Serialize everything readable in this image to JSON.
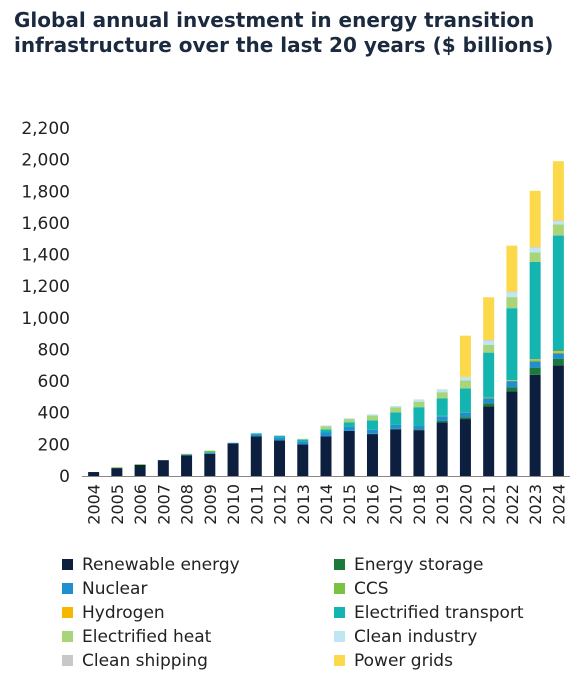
{
  "chart_data": {
    "type": "bar",
    "stacked": true,
    "title": "Global annual investment in energy transition infrastructure over the last 20 years ($ billions)",
    "xlabel": "",
    "ylabel": "",
    "ylim": [
      0,
      2200
    ],
    "yticks": [
      0,
      200,
      400,
      600,
      800,
      1000,
      1200,
      1400,
      1600,
      1800,
      2000,
      2200
    ],
    "ytick_labels": [
      "0",
      "200",
      "400",
      "600",
      "800",
      "1,000",
      "1,200",
      "1,400",
      "1,600",
      "1,800",
      "2,000",
      "2,200"
    ],
    "grid": false,
    "legend_position": "bottom",
    "categories": [
      "2004",
      "2005",
      "2006",
      "2007",
      "2008",
      "2009",
      "2010",
      "2011",
      "2012",
      "2013",
      "2014",
      "2015",
      "2016",
      "2017",
      "2018",
      "2019",
      "2020",
      "2021",
      "2022",
      "2023",
      "2024"
    ],
    "series": [
      {
        "name": "Renewable energy",
        "color": "#0c1f3f",
        "values": [
          25,
          50,
          70,
          100,
          130,
          140,
          205,
          250,
          225,
          200,
          250,
          285,
          265,
          295,
          290,
          340,
          360,
          440,
          535,
          640,
          700
        ]
      },
      {
        "name": "Energy storage",
        "color": "#1a7a3a",
        "values": [
          0,
          0,
          0,
          0,
          0,
          0,
          0,
          0,
          0,
          0,
          0,
          0,
          2,
          3,
          5,
          8,
          12,
          20,
          25,
          45,
          40
        ]
      },
      {
        "name": "Nuclear",
        "color": "#1f8fd0",
        "values": [
          0,
          0,
          0,
          0,
          5,
          10,
          5,
          15,
          20,
          20,
          25,
          25,
          25,
          25,
          25,
          30,
          30,
          30,
          40,
          40,
          35
        ]
      },
      {
        "name": "CCS",
        "color": "#7cc242",
        "values": [
          0,
          5,
          5,
          0,
          5,
          10,
          0,
          0,
          0,
          0,
          0,
          0,
          0,
          0,
          0,
          2,
          2,
          3,
          3,
          5,
          5
        ]
      },
      {
        "name": "Hydrogen",
        "color": "#f5b800",
        "values": [
          0,
          0,
          0,
          0,
          0,
          0,
          0,
          0,
          0,
          0,
          0,
          0,
          0,
          0,
          0,
          0,
          0,
          2,
          3,
          8,
          10
        ]
      },
      {
        "name": "Electrified transport",
        "color": "#14b5b0",
        "values": [
          0,
          0,
          0,
          0,
          0,
          0,
          0,
          5,
          10,
          10,
          20,
          30,
          60,
          80,
          115,
          110,
          150,
          285,
          455,
          615,
          730
        ]
      },
      {
        "name": "Electrified heat",
        "color": "#a8d47a",
        "values": [
          0,
          0,
          0,
          0,
          0,
          0,
          0,
          0,
          0,
          5,
          20,
          20,
          30,
          30,
          35,
          40,
          50,
          50,
          70,
          60,
          70
        ]
      },
      {
        "name": "Clean industry",
        "color": "#bfe6f5",
        "values": [
          0,
          0,
          0,
          0,
          0,
          0,
          0,
          0,
          0,
          0,
          5,
          5,
          8,
          10,
          12,
          15,
          20,
          25,
          30,
          30,
          20
        ]
      },
      {
        "name": "Clean shipping",
        "color": "#c8c8c8",
        "values": [
          0,
          0,
          0,
          0,
          0,
          0,
          0,
          0,
          0,
          0,
          0,
          0,
          0,
          0,
          2,
          3,
          3,
          5,
          5,
          5,
          5
        ]
      },
      {
        "name": "Power grids",
        "color": "#fcd94a",
        "values": [
          0,
          0,
          0,
          0,
          0,
          0,
          0,
          0,
          0,
          0,
          0,
          0,
          0,
          0,
          0,
          0,
          260,
          270,
          290,
          355,
          375
        ]
      }
    ]
  }
}
